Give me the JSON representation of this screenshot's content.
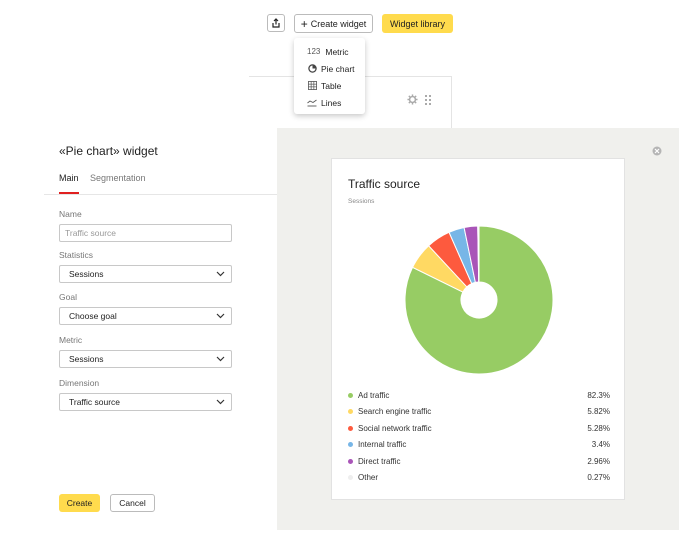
{
  "toolbar": {
    "create_widget_label": "Create widget",
    "widget_library_label": "Widget library"
  },
  "dropdown": {
    "items": [
      {
        "label": "Metric",
        "prefix": "123",
        "icon": "number-icon"
      },
      {
        "label": "Pie chart",
        "icon": "pie-chart-icon"
      },
      {
        "label": "Table",
        "icon": "table-icon"
      },
      {
        "label": "Lines",
        "icon": "lines-icon"
      }
    ]
  },
  "modal": {
    "title": "«Pie chart» widget",
    "tabs": [
      {
        "label": "Main",
        "active": true
      },
      {
        "label": "Segmentation",
        "active": false
      }
    ],
    "fields": {
      "name": {
        "label": "Name",
        "placeholder": "Traffic source"
      },
      "statistics": {
        "label": "Statistics",
        "value": "Sessions"
      },
      "goal": {
        "label": "Goal",
        "value": "Choose goal"
      },
      "metric": {
        "label": "Metric",
        "value": "Sessions"
      },
      "dimension": {
        "label": "Dimension",
        "value": "Traffic source"
      }
    },
    "create_label": "Create",
    "cancel_label": "Cancel"
  },
  "preview": {
    "title": "Traffic source",
    "subtitle": "Sessions"
  },
  "colors": {
    "accent_yellow": "#ffdb4d",
    "tab_red": "#e02020",
    "preview_bg": "#f0f0ed"
  },
  "chart_data": {
    "type": "pie",
    "title": "Traffic source",
    "subtitle": "Sessions",
    "donut": true,
    "legend_position": "bottom",
    "series": [
      {
        "name": "Ad traffic",
        "value": 82.3,
        "display": "82.3%",
        "color": "#97cc64"
      },
      {
        "name": "Search engine traffic",
        "value": 5.82,
        "display": "5.82%",
        "color": "#ffd963"
      },
      {
        "name": "Social network traffic",
        "value": 5.28,
        "display": "5.28%",
        "color": "#fd5a3e"
      },
      {
        "name": "Internal traffic",
        "value": 3.4,
        "display": "3.4%",
        "color": "#77b6e7"
      },
      {
        "name": "Direct traffic",
        "value": 2.96,
        "display": "2.96%",
        "color": "#a955b8"
      },
      {
        "name": "Other",
        "value": 0.27,
        "display": "0.27%",
        "color": "#eeeeee"
      }
    ]
  }
}
